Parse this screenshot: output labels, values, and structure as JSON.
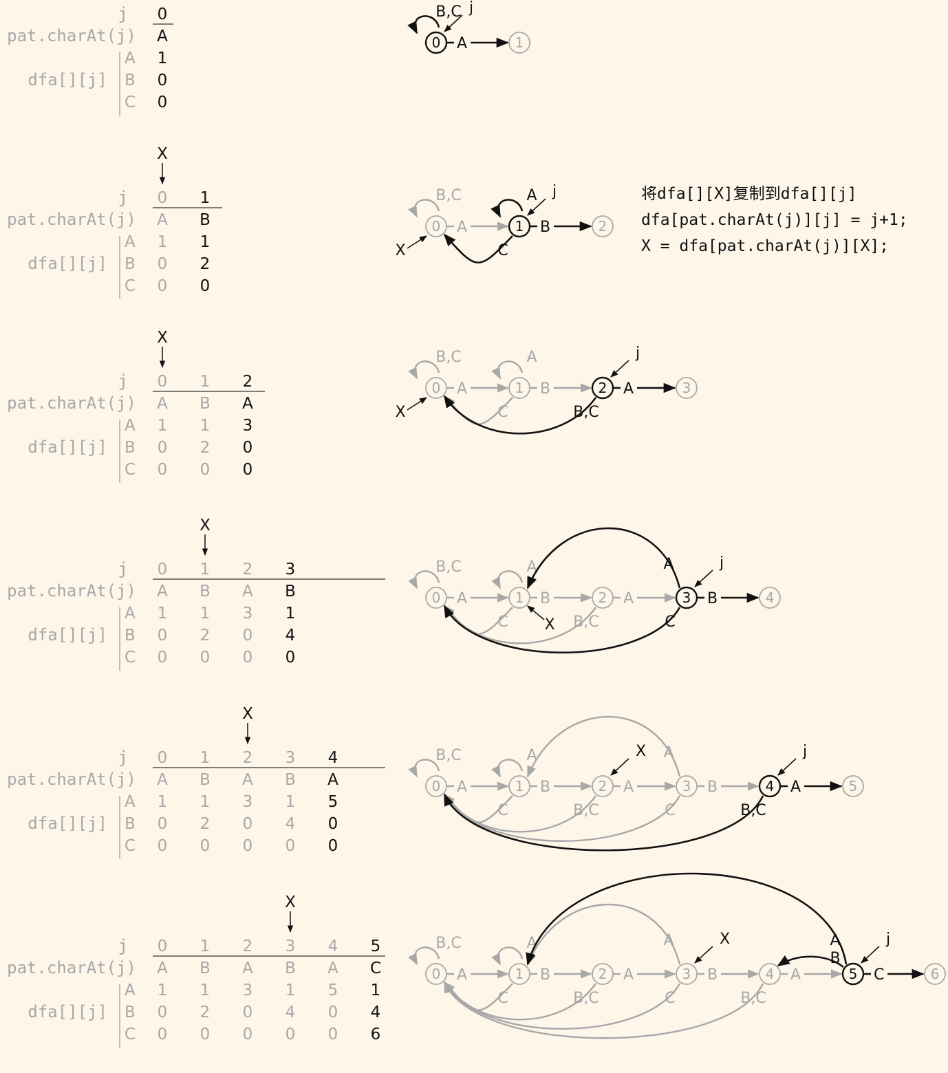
{
  "labels": {
    "j": "j",
    "pat": "pat.charAt(j)",
    "dfa": "dfa[][j]",
    "x": "X",
    "j_pointer": "j",
    "x_pointer": "X",
    "rows": [
      "A",
      "B",
      "C"
    ]
  },
  "note": {
    "line1": "将dfa[][X]复制到dfa[][j]",
    "line2": "dfa[pat.charAt(j)][j] = j+1;",
    "line3": "X = dfa[pat.charAt(j)][X];"
  },
  "pattern": [
    "A",
    "B",
    "A",
    "B",
    "A",
    "C"
  ],
  "dfa": {
    "A": [
      1,
      1,
      3,
      1,
      5,
      1
    ],
    "B": [
      0,
      2,
      0,
      4,
      0,
      4
    ],
    "C": [
      0,
      0,
      0,
      0,
      0,
      6
    ]
  },
  "steps": [
    {
      "j": 0,
      "x": null,
      "states": [
        "0",
        "1"
      ],
      "edges": [
        {
          "from": 0,
          "to": 0,
          "label": "B,C",
          "dark": true
        },
        {
          "from": 0,
          "to": 1,
          "label": "A",
          "dark": true
        }
      ]
    },
    {
      "j": 1,
      "x": 0,
      "states": [
        "0",
        "1",
        "2"
      ],
      "edges": [
        {
          "from": 0,
          "to": 0,
          "label": "B,C",
          "dark": false
        },
        {
          "from": 0,
          "to": 1,
          "label": "A",
          "dark": false
        },
        {
          "from": 1,
          "to": 1,
          "label": "A",
          "dark": true
        },
        {
          "from": 1,
          "to": 0,
          "label": "C",
          "dark": true
        },
        {
          "from": 1,
          "to": 2,
          "label": "B",
          "dark": true
        }
      ]
    },
    {
      "j": 2,
      "x": 0,
      "states": [
        "0",
        "1",
        "2",
        "3"
      ],
      "edges": [
        {
          "from": 0,
          "to": 0,
          "label": "B,C",
          "dark": false
        },
        {
          "from": 0,
          "to": 1,
          "label": "A",
          "dark": false
        },
        {
          "from": 1,
          "to": 1,
          "label": "A",
          "dark": false
        },
        {
          "from": 1,
          "to": 0,
          "label": "C",
          "dark": false
        },
        {
          "from": 1,
          "to": 2,
          "label": "B",
          "dark": false
        },
        {
          "from": 2,
          "to": 0,
          "label": "B,C",
          "dark": true
        },
        {
          "from": 2,
          "to": 3,
          "label": "A",
          "dark": true
        }
      ]
    },
    {
      "j": 3,
      "x": 1,
      "states": [
        "0",
        "1",
        "2",
        "3",
        "4"
      ],
      "edges": [
        {
          "from": 0,
          "to": 0,
          "label": "B,C",
          "dark": false
        },
        {
          "from": 0,
          "to": 1,
          "label": "A",
          "dark": false
        },
        {
          "from": 1,
          "to": 1,
          "label": "A",
          "dark": false
        },
        {
          "from": 1,
          "to": 0,
          "label": "C",
          "dark": false
        },
        {
          "from": 1,
          "to": 2,
          "label": "B",
          "dark": false
        },
        {
          "from": 2,
          "to": 0,
          "label": "B,C",
          "dark": false
        },
        {
          "from": 2,
          "to": 3,
          "label": "A",
          "dark": false
        },
        {
          "from": 3,
          "to": 1,
          "label": "A",
          "dark": true
        },
        {
          "from": 3,
          "to": 0,
          "label": "C",
          "dark": true
        },
        {
          "from": 3,
          "to": 4,
          "label": "B",
          "dark": true
        }
      ]
    },
    {
      "j": 4,
      "x": 2,
      "states": [
        "0",
        "1",
        "2",
        "3",
        "4",
        "5"
      ],
      "edges": [
        {
          "from": 0,
          "to": 0,
          "label": "B,C",
          "dark": false
        },
        {
          "from": 0,
          "to": 1,
          "label": "A",
          "dark": false
        },
        {
          "from": 1,
          "to": 1,
          "label": "A",
          "dark": false
        },
        {
          "from": 1,
          "to": 0,
          "label": "C",
          "dark": false
        },
        {
          "from": 1,
          "to": 2,
          "label": "B",
          "dark": false
        },
        {
          "from": 2,
          "to": 0,
          "label": "B,C",
          "dark": false
        },
        {
          "from": 2,
          "to": 3,
          "label": "A",
          "dark": false
        },
        {
          "from": 3,
          "to": 1,
          "label": "A",
          "dark": false
        },
        {
          "from": 3,
          "to": 0,
          "label": "C",
          "dark": false
        },
        {
          "from": 3,
          "to": 4,
          "label": "B",
          "dark": false
        },
        {
          "from": 4,
          "to": 0,
          "label": "B,C",
          "dark": true
        },
        {
          "from": 4,
          "to": 5,
          "label": "A",
          "dark": true
        }
      ]
    },
    {
      "j": 5,
      "x": 3,
      "states": [
        "0",
        "1",
        "2",
        "3",
        "4",
        "5",
        "6"
      ],
      "edges": [
        {
          "from": 0,
          "to": 0,
          "label": "B,C",
          "dark": false
        },
        {
          "from": 0,
          "to": 1,
          "label": "A",
          "dark": false
        },
        {
          "from": 1,
          "to": 1,
          "label": "A",
          "dark": false
        },
        {
          "from": 1,
          "to": 0,
          "label": "C",
          "dark": false
        },
        {
          "from": 1,
          "to": 2,
          "label": "B",
          "dark": false
        },
        {
          "from": 2,
          "to": 0,
          "label": "B,C",
          "dark": false
        },
        {
          "from": 2,
          "to": 3,
          "label": "A",
          "dark": false
        },
        {
          "from": 3,
          "to": 1,
          "label": "A",
          "dark": false
        },
        {
          "from": 3,
          "to": 0,
          "label": "C",
          "dark": false
        },
        {
          "from": 3,
          "to": 4,
          "label": "B",
          "dark": false
        },
        {
          "from": 4,
          "to": 0,
          "label": "B,C",
          "dark": false
        },
        {
          "from": 4,
          "to": 5,
          "label": "A",
          "dark": false
        },
        {
          "from": 5,
          "to": 1,
          "label": "A",
          "dark": true
        },
        {
          "from": 5,
          "to": 4,
          "label": "B",
          "dark": true
        },
        {
          "from": 5,
          "to": 6,
          "label": "C",
          "dark": true
        }
      ]
    }
  ],
  "colors": {
    "background": "#fdf6e9",
    "dark": "#111111",
    "light": "#a8a8a8"
  }
}
